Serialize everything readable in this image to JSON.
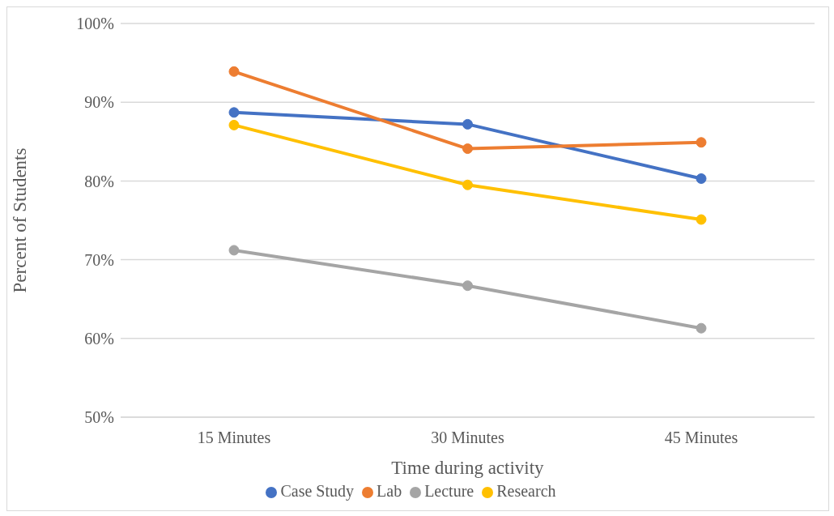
{
  "chart_data": {
    "type": "line",
    "xlabel": "Time during activity",
    "ylabel": "Percent of Students",
    "categories": [
      "15 Minutes",
      "30 Minutes",
      "45 Minutes"
    ],
    "series": [
      {
        "name": "Case Study",
        "color": "#4472c4",
        "values": [
          88.7,
          87.2,
          80.3
        ]
      },
      {
        "name": "Lab",
        "color": "#ed7d31",
        "values": [
          93.9,
          84.1,
          84.9
        ]
      },
      {
        "name": "Lecture",
        "color": "#a5a5a5",
        "values": [
          71.2,
          66.7,
          61.3
        ]
      },
      {
        "name": "Research",
        "color": "#ffc000",
        "values": [
          87.1,
          79.5,
          75.1
        ]
      }
    ],
    "ylim": [
      50,
      100
    ],
    "yticks": [
      {
        "value": 50,
        "label": "50%"
      },
      {
        "value": 60,
        "label": "60%"
      },
      {
        "value": 70,
        "label": "70%"
      },
      {
        "value": 80,
        "label": "80%"
      },
      {
        "value": 90,
        "label": "90%"
      },
      {
        "value": 100,
        "label": "100%"
      }
    ],
    "grid": "y",
    "legend": "bottom",
    "marker": "circle",
    "line_style": "solid"
  }
}
